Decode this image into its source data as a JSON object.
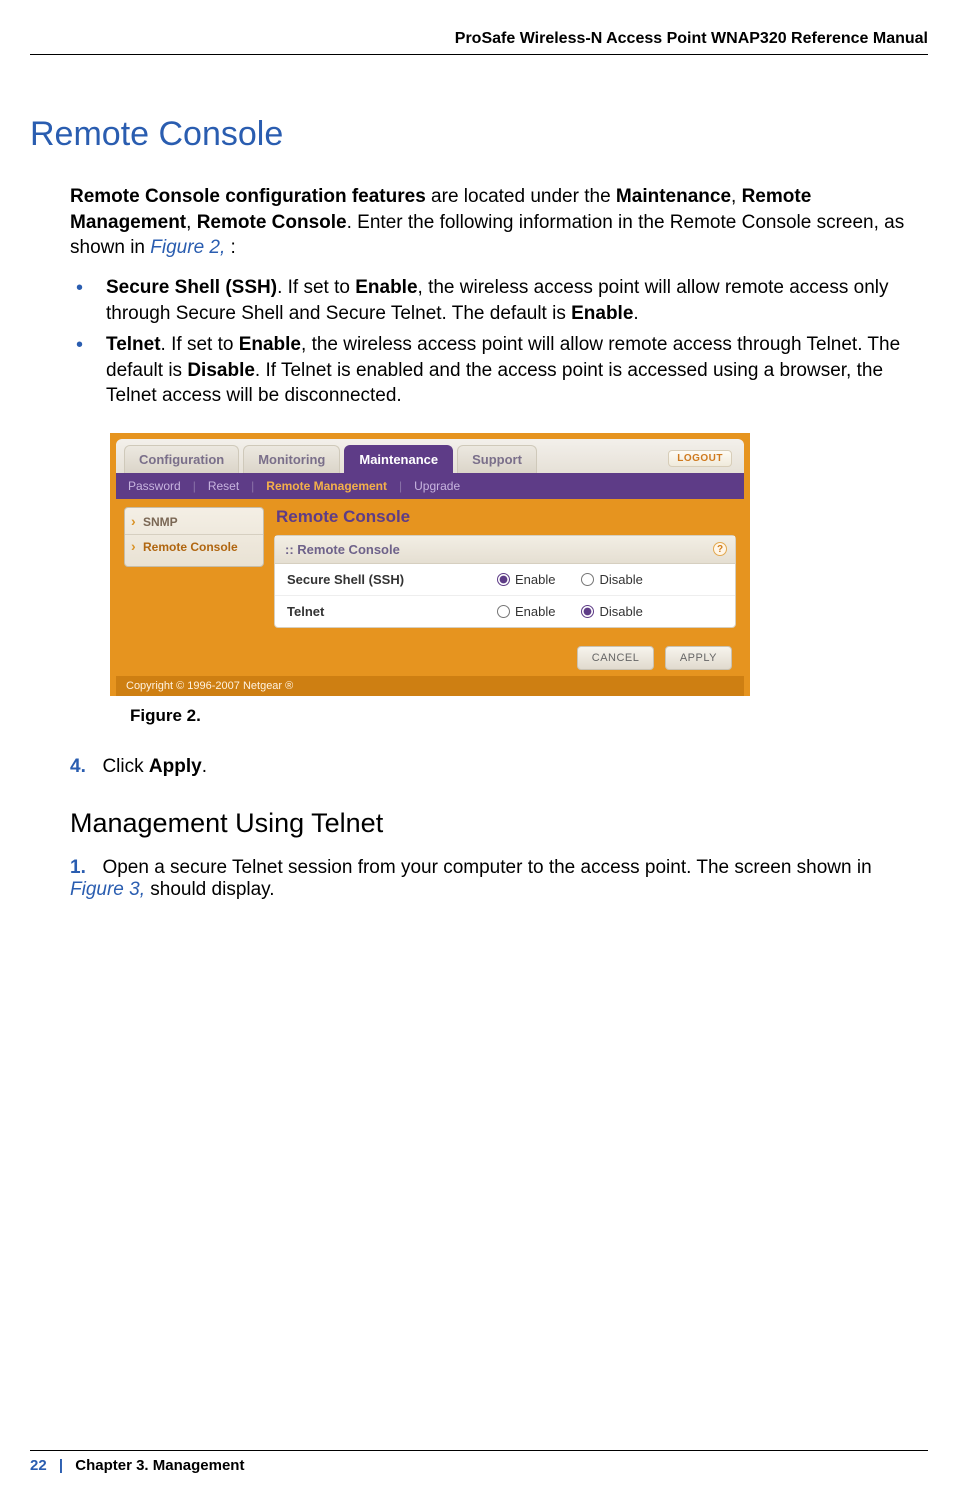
{
  "doc": {
    "header": "ProSafe Wireless-N Access Point WNAP320 Reference Manual",
    "section_title": "Remote Console",
    "intro": {
      "p1a": "Remote Console configuration features",
      "p1b": " are located under the ",
      "p1c": "Maintenance",
      "p1d": ", ",
      "p1e": "Remote Management",
      "p1f": ", ",
      "p1g": "Remote Console",
      "p1h": ". Enter the following information in the Remote Console screen, as shown in ",
      "p1link": "Figure 2,",
      "p1tail": " :"
    },
    "bullets": {
      "b1a": "Secure Shell (SSH)",
      "b1b": ". If set to ",
      "b1c": "Enable",
      "b1d": ", the wireless access point will allow remote access only through Secure Shell and Secure Telnet. The default is ",
      "b1e": "Enable",
      "b1f": ".",
      "b2a": "Telnet",
      "b2b": ". If set to ",
      "b2c": "Enable",
      "b2d": ", the wireless access point will allow remote access through Telnet. The default is ",
      "b2e": "Disable",
      "b2f": ". If Telnet is enabled and the access point is accessed using a browser, the Telnet access will be disconnected."
    },
    "figure_caption": "Figure 2.",
    "step4": {
      "num": "4.",
      "txta": "Click ",
      "txtb": "Apply",
      "txtc": "."
    },
    "subhead": "Management Using Telnet",
    "step1": {
      "num": "1.",
      "txta": "Open a secure Telnet session from your computer to the access point. The screen shown in ",
      "link": "Figure 3,",
      "txtb": "  should display."
    }
  },
  "shot": {
    "tabs": {
      "t1": "Configuration",
      "t2": "Monitoring",
      "t3": "Maintenance",
      "t4": "Support"
    },
    "logout": "LOGOUT",
    "subtabs": {
      "s1": "Password",
      "s2": "Reset",
      "s3": "Remote Management",
      "s4": "Upgrade"
    },
    "side": {
      "i1": "SNMP",
      "i2": "Remote Console"
    },
    "panel_title": "Remote Console",
    "card_head": ":: Remote Console",
    "help": "?",
    "row1": {
      "label": "Secure Shell (SSH)",
      "enable": "Enable",
      "disable": "Disable"
    },
    "row2": {
      "label": "Telnet",
      "enable": "Enable",
      "disable": "Disable"
    },
    "buttons": {
      "cancel": "CANCEL",
      "apply": "APPLY"
    },
    "copyright": "Copyright © 1996-2007 Netgear ®",
    "colors": {
      "shot_bg": "#e6941f",
      "active_tab": "#5e3c87",
      "link_blue": "#2a5db0"
    }
  },
  "footer": {
    "page": "22",
    "sep": "|",
    "chapter": "Chapter 3.  Management"
  }
}
